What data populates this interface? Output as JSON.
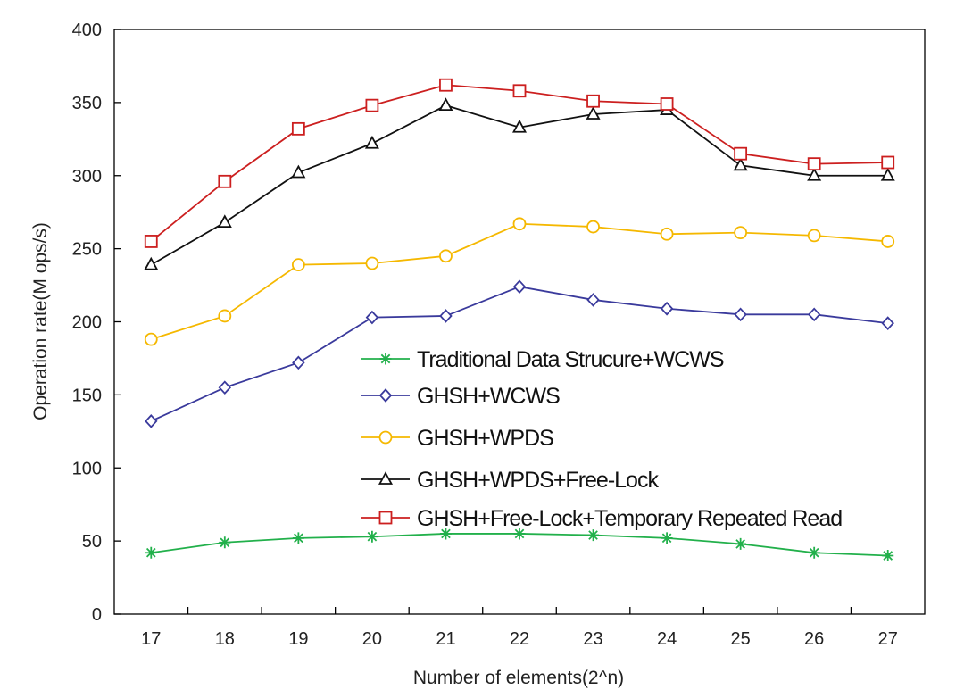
{
  "chart_data": {
    "type": "line",
    "title": "",
    "xlabel": "Number of elements(2^n)",
    "ylabel": "Operation rate(M ops/s)",
    "x": [
      17,
      18,
      19,
      20,
      21,
      22,
      23,
      24,
      25,
      26,
      27
    ],
    "ylim": [
      0,
      400
    ],
    "yticks": [
      0,
      50,
      100,
      150,
      200,
      250,
      300,
      350,
      400
    ],
    "grid": false,
    "legend_position": "center-right",
    "series": [
      {
        "name": "Traditional Data Strucure+WCWS",
        "marker": "asterisk",
        "color": "#22b04b",
        "values": [
          42,
          49,
          52,
          53,
          55,
          55,
          54,
          52,
          48,
          42,
          40
        ]
      },
      {
        "name": "GHSH+WCWS",
        "marker": "diamond",
        "color": "#3a3a9c",
        "values": [
          132,
          155,
          172,
          203,
          204,
          224,
          215,
          209,
          205,
          205,
          199
        ]
      },
      {
        "name": "GHSH+WPDS",
        "marker": "circle",
        "color": "#f5b800",
        "values": [
          188,
          204,
          239,
          240,
          245,
          267,
          265,
          260,
          261,
          259,
          255
        ]
      },
      {
        "name": "GHSH+WPDS+Free-Lock",
        "marker": "triangle",
        "color": "#111111",
        "values": [
          239,
          268,
          302,
          322,
          348,
          333,
          342,
          345,
          307,
          300,
          300
        ]
      },
      {
        "name": "GHSH+Free-Lock+Temporary Repeated Read",
        "marker": "square",
        "color": "#cc1f1f",
        "values": [
          255,
          296,
          332,
          348,
          362,
          358,
          351,
          349,
          315,
          308,
          309
        ]
      }
    ]
  }
}
